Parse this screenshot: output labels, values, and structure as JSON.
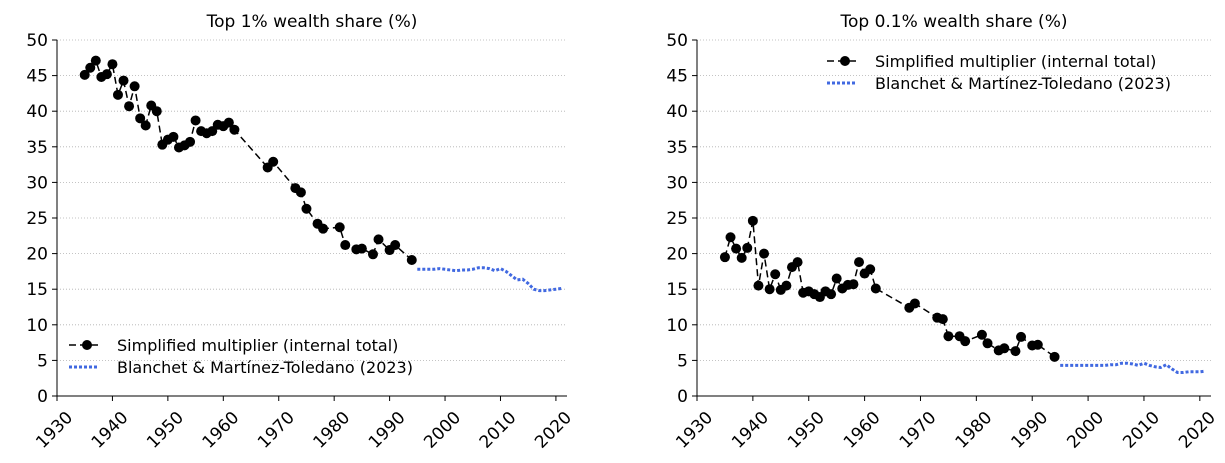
{
  "chart_data": [
    {
      "type": "line",
      "title": "Top 1% wealth share (%)",
      "xlabel": "",
      "ylabel": "",
      "xlim": [
        1930,
        2022
      ],
      "ylim": [
        0,
        50
      ],
      "xticks": [
        1930,
        1940,
        1950,
        1960,
        1970,
        1980,
        1990,
        2000,
        2010,
        2020
      ],
      "yticks": [
        0,
        5,
        10,
        15,
        20,
        25,
        30,
        35,
        40,
        45,
        50
      ],
      "grid": "horizontal dotted",
      "legend_position": "lower-left",
      "series": [
        {
          "name": "Simplified multiplier (internal total)",
          "color": "#000000",
          "style": "dashed line with circle markers",
          "x": [
            1935,
            1936,
            1937,
            1938,
            1939,
            1940,
            1941,
            1942,
            1943,
            1944,
            1945,
            1946,
            1947,
            1948,
            1949,
            1950,
            1951,
            1952,
            1953,
            1954,
            1955,
            1956,
            1957,
            1958,
            1959,
            1960,
            1961,
            1962,
            1968,
            1969,
            1973,
            1974,
            1975,
            1977,
            1978,
            1981,
            1982,
            1984,
            1985,
            1987,
            1988,
            1990,
            1991,
            1994
          ],
          "y": [
            45.1,
            46.1,
            47.1,
            44.8,
            45.2,
            46.6,
            42.3,
            44.3,
            40.7,
            43.5,
            39.0,
            38.0,
            40.8,
            40.0,
            35.3,
            36.0,
            36.4,
            34.9,
            35.2,
            35.7,
            38.7,
            37.2,
            36.9,
            37.2,
            38.1,
            37.9,
            38.4,
            37.4,
            32.1,
            32.9,
            29.2,
            28.6,
            26.3,
            24.2,
            23.5,
            23.7,
            21.2,
            20.6,
            20.7,
            19.9,
            22.0,
            20.5,
            21.2,
            19.1
          ]
        },
        {
          "name": "Blanchet & Martínez-Toledano (2023)",
          "color": "#4169e1",
          "style": "dotted line",
          "x": [
            1995,
            1996,
            1997,
            1998,
            1999,
            2000,
            2001,
            2002,
            2003,
            2004,
            2005,
            2006,
            2007,
            2008,
            2009,
            2010,
            2011,
            2012,
            2013,
            2014,
            2015,
            2016,
            2017,
            2018,
            2019,
            2020,
            2021
          ],
          "y": [
            17.8,
            17.8,
            17.8,
            17.8,
            17.9,
            17.8,
            17.7,
            17.6,
            17.7,
            17.7,
            17.8,
            18.0,
            18.0,
            17.9,
            17.6,
            17.9,
            17.5,
            16.9,
            16.3,
            16.4,
            15.8,
            15.0,
            14.8,
            14.8,
            14.9,
            15.0,
            15.1
          ]
        }
      ]
    },
    {
      "type": "line",
      "title": "Top 0.1% wealth share (%)",
      "xlabel": "",
      "ylabel": "",
      "xlim": [
        1930,
        2022
      ],
      "ylim": [
        0,
        50
      ],
      "xticks": [
        1930,
        1940,
        1950,
        1960,
        1970,
        1980,
        1990,
        2000,
        2010,
        2020
      ],
      "yticks": [
        0,
        5,
        10,
        15,
        20,
        25,
        30,
        35,
        40,
        45,
        50
      ],
      "grid": "horizontal dotted",
      "legend_position": "upper-right",
      "series": [
        {
          "name": "Simplified multiplier (internal total)",
          "color": "#000000",
          "style": "dashed line with circle markers",
          "x": [
            1935,
            1936,
            1937,
            1938,
            1939,
            1940,
            1941,
            1942,
            1943,
            1944,
            1945,
            1946,
            1947,
            1948,
            1949,
            1950,
            1951,
            1952,
            1953,
            1954,
            1955,
            1956,
            1957,
            1958,
            1959,
            1960,
            1961,
            1962,
            1968,
            1969,
            1973,
            1974,
            1975,
            1977,
            1978,
            1981,
            1982,
            1984,
            1985,
            1987,
            1988,
            1990,
            1991,
            1994
          ],
          "y": [
            19.5,
            22.3,
            20.7,
            19.4,
            20.8,
            24.6,
            15.5,
            20.0,
            15.0,
            17.1,
            14.9,
            15.5,
            18.1,
            18.8,
            14.5,
            14.7,
            14.3,
            13.9,
            14.7,
            14.3,
            16.5,
            15.1,
            15.6,
            15.7,
            18.8,
            17.2,
            17.8,
            15.1,
            12.4,
            13.0,
            11.0,
            10.8,
            8.4,
            8.4,
            7.7,
            8.6,
            7.4,
            6.4,
            6.7,
            6.3,
            8.3,
            7.1,
            7.2,
            5.5
          ]
        },
        {
          "name": "Blanchet & Martínez-Toledano (2023)",
          "color": "#4169e1",
          "style": "dotted line",
          "x": [
            1995,
            1996,
            1997,
            1998,
            1999,
            2000,
            2001,
            2002,
            2003,
            2004,
            2005,
            2006,
            2007,
            2008,
            2009,
            2010,
            2011,
            2012,
            2013,
            2014,
            2015,
            2016,
            2017,
            2018,
            2019,
            2020,
            2021
          ],
          "y": [
            4.3,
            4.3,
            4.3,
            4.3,
            4.3,
            4.3,
            4.3,
            4.3,
            4.3,
            4.4,
            4.4,
            4.6,
            4.6,
            4.5,
            4.3,
            4.6,
            4.3,
            4.1,
            4.0,
            4.4,
            3.8,
            3.3,
            3.3,
            3.4,
            3.4,
            3.4,
            3.5
          ]
        }
      ]
    }
  ]
}
